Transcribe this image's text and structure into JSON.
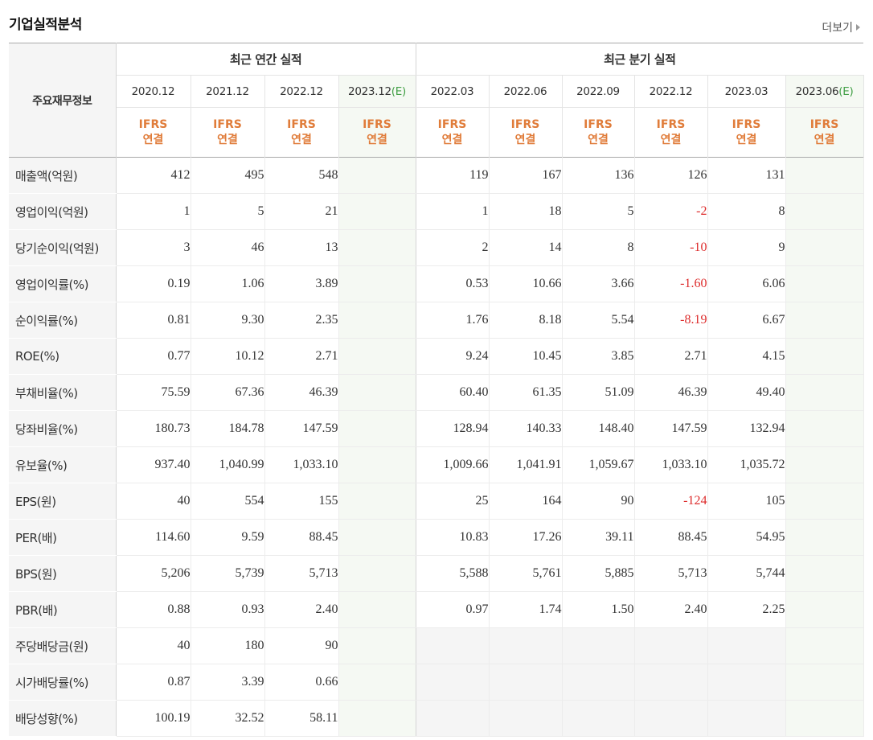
{
  "section_title": "기업실적분석",
  "more_label": "더보기",
  "header": {
    "corner_label": "주요재무정보",
    "annual_label": "최근 연간 실적",
    "quarterly_label": "최근 분기 실적",
    "columns": [
      {
        "period": "2020.12",
        "est": "",
        "std1": "IFRS",
        "std2": "연결"
      },
      {
        "period": "2021.12",
        "est": "",
        "std1": "IFRS",
        "std2": "연결"
      },
      {
        "period": "2022.12",
        "est": "",
        "std1": "IFRS",
        "std2": "연결"
      },
      {
        "period": "2023.12",
        "est": "(E)",
        "std1": "IFRS",
        "std2": "연결"
      },
      {
        "period": "2022.03",
        "est": "",
        "std1": "IFRS",
        "std2": "연결"
      },
      {
        "period": "2022.06",
        "est": "",
        "std1": "IFRS",
        "std2": "연결"
      },
      {
        "period": "2022.09",
        "est": "",
        "std1": "IFRS",
        "std2": "연결"
      },
      {
        "period": "2022.12",
        "est": "",
        "std1": "IFRS",
        "std2": "연결"
      },
      {
        "period": "2023.03",
        "est": "",
        "std1": "IFRS",
        "std2": "연결"
      },
      {
        "period": "2023.06",
        "est": "(E)",
        "std1": "IFRS",
        "std2": "연결"
      }
    ]
  },
  "rows": [
    {
      "label": "매출액(억원)",
      "values": [
        "412",
        "495",
        "548",
        "",
        "119",
        "167",
        "136",
        "126",
        "131",
        ""
      ]
    },
    {
      "label": "영업이익(억원)",
      "values": [
        "1",
        "5",
        "21",
        "",
        "1",
        "18",
        "5",
        "-2",
        "8",
        ""
      ]
    },
    {
      "label": "당기순이익(억원)",
      "values": [
        "3",
        "46",
        "13",
        "",
        "2",
        "14",
        "8",
        "-10",
        "9",
        ""
      ]
    },
    {
      "label": "영업이익률(%)",
      "values": [
        "0.19",
        "1.06",
        "3.89",
        "",
        "0.53",
        "10.66",
        "3.66",
        "-1.60",
        "6.06",
        ""
      ]
    },
    {
      "label": "순이익률(%)",
      "values": [
        "0.81",
        "9.30",
        "2.35",
        "",
        "1.76",
        "8.18",
        "5.54",
        "-8.19",
        "6.67",
        ""
      ]
    },
    {
      "label": "ROE(%)",
      "values": [
        "0.77",
        "10.12",
        "2.71",
        "",
        "9.24",
        "10.45",
        "3.85",
        "2.71",
        "4.15",
        ""
      ]
    },
    {
      "label": "부채비율(%)",
      "values": [
        "75.59",
        "67.36",
        "46.39",
        "",
        "60.40",
        "61.35",
        "51.09",
        "46.39",
        "49.40",
        ""
      ]
    },
    {
      "label": "당좌비율(%)",
      "values": [
        "180.73",
        "184.78",
        "147.59",
        "",
        "128.94",
        "140.33",
        "148.40",
        "147.59",
        "132.94",
        ""
      ]
    },
    {
      "label": "유보율(%)",
      "values": [
        "937.40",
        "1,040.99",
        "1,033.10",
        "",
        "1,009.66",
        "1,041.91",
        "1,059.67",
        "1,033.10",
        "1,035.72",
        ""
      ]
    },
    {
      "label": "EPS(원)",
      "values": [
        "40",
        "554",
        "155",
        "",
        "25",
        "164",
        "90",
        "-124",
        "105",
        ""
      ]
    },
    {
      "label": "PER(배)",
      "values": [
        "114.60",
        "9.59",
        "88.45",
        "",
        "10.83",
        "17.26",
        "39.11",
        "88.45",
        "54.95",
        ""
      ]
    },
    {
      "label": "BPS(원)",
      "values": [
        "5,206",
        "5,739",
        "5,713",
        "",
        "5,588",
        "5,761",
        "5,885",
        "5,713",
        "5,744",
        ""
      ]
    },
    {
      "label": "PBR(배)",
      "values": [
        "0.88",
        "0.93",
        "2.40",
        "",
        "0.97",
        "1.74",
        "1.50",
        "2.40",
        "2.25",
        ""
      ]
    },
    {
      "label": "주당배당금(원)",
      "values": [
        "40",
        "180",
        "90",
        "",
        "",
        "",
        "",
        "",
        "",
        ""
      ]
    },
    {
      "label": "시가배당률(%)",
      "values": [
        "0.87",
        "3.39",
        "0.66",
        "",
        "",
        "",
        "",
        "",
        "",
        ""
      ]
    },
    {
      "label": "배당성향(%)",
      "values": [
        "100.19",
        "32.52",
        "58.11",
        "",
        "",
        "",
        "",
        "",
        "",
        ""
      ]
    }
  ]
}
